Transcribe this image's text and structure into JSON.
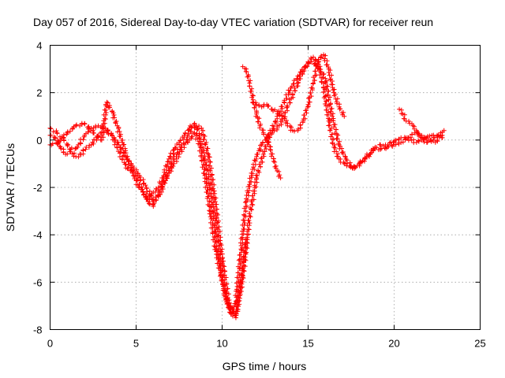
{
  "chart_data": {
    "type": "scatter",
    "title": "Day 057 of 2016, Sidereal Day-to-day VTEC variation (SDTVAR) for receiver reun",
    "xlabel": "GPS time / hours",
    "ylabel": "SDTVAR / TECUs",
    "xlim": [
      0,
      25
    ],
    "ylim": [
      -8,
      4
    ],
    "xticks": [
      "0",
      "5",
      "10",
      "15",
      "20",
      "25"
    ],
    "yticks": [
      "-8",
      "-6",
      "-4",
      "-2",
      "0",
      "2",
      "4"
    ],
    "grid": true,
    "marker": "+",
    "marker_color": "#ff0000",
    "series": [
      {
        "x": [
          0.0,
          0.3,
          0.6,
          0.9,
          1.2,
          1.5,
          1.8,
          2.1,
          2.4,
          2.7,
          3.0,
          3.3,
          3.6,
          3.9,
          4.2,
          4.5,
          4.8,
          5.1,
          5.4,
          5.7,
          6.0,
          6.3,
          6.6,
          6.9,
          7.2,
          7.5,
          7.8,
          8.1,
          8.4,
          8.7,
          9.0,
          9.3,
          9.6,
          9.9,
          10.2,
          10.5,
          10.8,
          11.1,
          11.4,
          11.7,
          12.0,
          12.3,
          12.6,
          12.9,
          13.2,
          13.5,
          13.8,
          14.1,
          14.4,
          14.7,
          15.0,
          15.3,
          15.6,
          15.9,
          16.2,
          16.5,
          16.8,
          17.1,
          17.4,
          17.7,
          18.0,
          18.3,
          18.6,
          18.9,
          19.2,
          19.5,
          19.8,
          20.1,
          20.4,
          20.7,
          21.0,
          21.3,
          21.6,
          21.9,
          22.2,
          22.5,
          22.8
        ],
        "y": [
          0.2,
          0.1,
          -0.3,
          -0.6,
          -0.5,
          -0.7,
          -0.6,
          -0.3,
          -0.2,
          0.1,
          0.3,
          0.4,
          0.2,
          -0.3,
          -0.8,
          -1.2,
          -1.3,
          -1.6,
          -2.2,
          -2.5,
          -2.2,
          -2.0,
          -1.5,
          -0.8,
          -0.4,
          -0.1,
          0.2,
          0.5,
          0.7,
          0.1,
          -0.8,
          -2.0,
          -3.6,
          -5.4,
          -6.6,
          -7.3,
          -6.8,
          -4.6,
          -2.6,
          -1.5,
          -0.7,
          -0.2,
          0.1,
          0.3,
          0.5,
          0.8,
          1.4,
          1.9,
          2.4,
          2.9,
          3.3,
          3.5,
          3.2,
          2.2,
          0.8,
          -0.3,
          -0.8,
          -1.0,
          -1.1,
          -1.2,
          -1.0,
          -0.8,
          -0.6,
          -0.3,
          -0.2,
          -0.2,
          -0.1,
          0.0,
          0.1,
          0.1,
          0.0,
          -0.1,
          0.0,
          0.1,
          0.2,
          0.2,
          0.1
        ]
      },
      {
        "x": [
          0.0,
          0.4,
          0.8,
          1.2,
          1.6,
          2.0,
          2.4,
          2.8,
          3.2,
          3.6,
          4.0,
          4.4,
          4.8,
          5.2,
          5.6,
          6.0,
          6.4,
          6.8,
          7.2,
          7.6,
          8.0,
          8.4,
          8.8,
          9.2,
          9.6,
          10.0,
          10.4,
          10.8,
          11.2,
          11.6,
          12.0,
          12.4,
          12.8,
          13.2,
          13.6,
          14.0,
          14.4,
          14.8,
          15.2,
          15.6,
          16.0,
          16.4,
          16.8,
          17.2,
          17.6,
          18.0,
          18.4,
          18.8,
          19.2,
          19.6,
          20.0,
          20.4,
          20.8,
          21.2,
          21.6,
          22.0,
          22.4,
          22.8
        ],
        "y": [
          0.5,
          0.3,
          0.0,
          -0.4,
          -0.3,
          0.2,
          0.5,
          0.6,
          0.5,
          0.2,
          -0.2,
          -0.7,
          -1.1,
          -1.5,
          -2.0,
          -2.6,
          -2.3,
          -1.5,
          -0.7,
          -0.3,
          0.2,
          0.6,
          0.5,
          -0.6,
          -2.6,
          -5.0,
          -6.9,
          -7.4,
          -5.8,
          -3.2,
          -1.6,
          -0.6,
          0.3,
          0.9,
          1.6,
          2.2,
          2.7,
          3.1,
          3.3,
          3.1,
          2.6,
          1.0,
          -0.2,
          -0.8,
          -1.2,
          -1.0,
          -0.7,
          -0.4,
          -0.4,
          -0.3,
          -0.2,
          -0.1,
          0.1,
          0.3,
          0.2,
          0.0,
          -0.1,
          0.2
        ]
      },
      {
        "x": [
          0.0,
          0.5,
          1.0,
          1.5,
          2.0,
          2.5,
          3.0,
          3.3,
          3.6,
          3.9,
          4.2,
          4.5,
          4.8,
          5.1,
          5.4,
          5.7,
          6.0,
          6.3,
          6.6,
          6.9,
          7.2,
          7.5,
          7.8,
          8.1,
          8.4,
          8.7,
          9.0,
          9.3,
          9.6,
          9.9,
          10.2,
          10.5,
          10.8,
          11.1,
          11.4
        ],
        "y": [
          -0.2,
          -0.1,
          0.3,
          0.6,
          0.7,
          0.3,
          0.0,
          1.6,
          1.2,
          0.6,
          -0.1,
          -0.8,
          -1.4,
          -1.9,
          -2.2,
          -2.6,
          -2.8,
          -2.2,
          -1.8,
          -1.4,
          -1.0,
          -0.6,
          -0.2,
          0.0,
          0.3,
          -0.2,
          -1.5,
          -3.0,
          -4.5,
          -5.6,
          -6.6,
          -7.3,
          -7.5,
          -6.0,
          -4.2
        ]
      },
      {
        "x": [
          11.2,
          11.4,
          11.6,
          11.8,
          12.0,
          12.2,
          12.4,
          12.6,
          12.8,
          13.0,
          13.2,
          13.4
        ],
        "y": [
          3.1,
          3.0,
          2.4,
          1.7,
          1.1,
          0.6,
          0.3,
          0.1,
          -0.4,
          -0.9,
          -1.3,
          -1.6
        ]
      },
      {
        "x": [
          11.8,
          12.0,
          12.3,
          12.6,
          12.9,
          13.2,
          13.5,
          13.8,
          14.1,
          14.4,
          14.7,
          15.0,
          15.3,
          15.6,
          15.9,
          16.2,
          16.5,
          16.8,
          17.1
        ],
        "y": [
          1.6,
          1.5,
          1.4,
          1.5,
          1.3,
          1.2,
          1.0,
          0.7,
          0.4,
          0.4,
          0.8,
          1.5,
          2.4,
          3.4,
          3.6,
          3.0,
          2.0,
          1.4,
          1.0
        ]
      },
      {
        "x": [
          20.3,
          20.5,
          20.7,
          20.9,
          21.1,
          21.3,
          21.5,
          21.7,
          21.9,
          22.1,
          22.3,
          22.5,
          22.7,
          22.9
        ],
        "y": [
          1.3,
          1.1,
          0.8,
          0.7,
          0.6,
          0.4,
          0.2,
          0.0,
          -0.1,
          0.0,
          0.1,
          0.2,
          0.3,
          0.4
        ]
      }
    ]
  }
}
